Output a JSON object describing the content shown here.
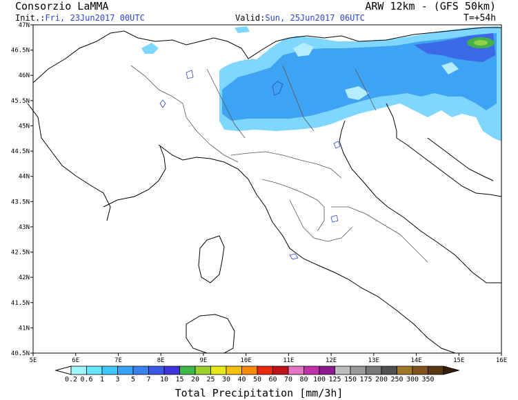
{
  "header": {
    "provider": "Consorzio LaMMA",
    "model": "ARW 12km - (GFS 50km)",
    "init_label": "Init.:",
    "init_value": "Fri, 23Jun2017 00UTC",
    "valid_label": "Valid:",
    "valid_value": "Sun, 25Jun2017 06UTC",
    "forecast_step": "T=+54h"
  },
  "axes": {
    "lat_labels": [
      "47N",
      "46.5N",
      "46N",
      "45.5N",
      "45N",
      "44.5N",
      "44N",
      "43.5N",
      "43N",
      "42.5N",
      "42N",
      "41.5N",
      "41N",
      "40.5N"
    ],
    "lon_labels": [
      "5E",
      "6E",
      "7E",
      "8E",
      "9E",
      "10E",
      "11E",
      "12E",
      "13E",
      "14E",
      "15E",
      "16E"
    ]
  },
  "colorbar": {
    "title": "Total Precipitation [mm/3h]",
    "labels": [
      "0.2",
      "0.6",
      "1",
      "3",
      "5",
      "7",
      "10",
      "15",
      "20",
      "25",
      "30",
      "40",
      "50",
      "60",
      "70",
      "80",
      "100",
      "125",
      "150",
      "175",
      "200",
      "250",
      "300",
      "350"
    ],
    "colors": [
      "#9ff8ff",
      "#66e6ff",
      "#3ec8ff",
      "#3aa5f7",
      "#3a82ef",
      "#3c5ae8",
      "#3f34df",
      "#3fb84a",
      "#9ad12f",
      "#e8e81a",
      "#f7c10f",
      "#f78a0a",
      "#e8280f",
      "#c2121a",
      "#e276c0",
      "#c030a8",
      "#8b1a8d",
      "#bdbdbd",
      "#9a9a9a",
      "#787878",
      "#505050",
      "#a0782a",
      "#80541c",
      "#5a3814",
      "#3a1e08"
    ]
  },
  "legend_colors": {
    "light_blue": "#7fd6ff",
    "medium_blue": "#3ea3f2",
    "deep_blue": "#3c6ae6",
    "green_peak": "#46b04a"
  }
}
